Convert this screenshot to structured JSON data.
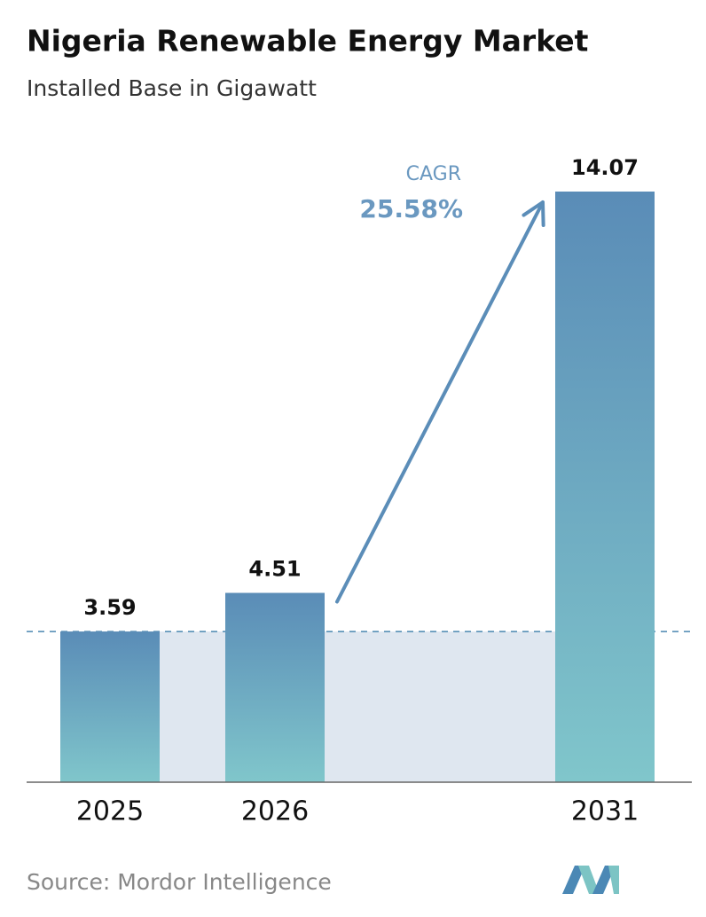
{
  "chart_data": {
    "type": "bar",
    "title": "Nigeria Renewable Energy Market",
    "subtitle": "Installed Base in Gigawatt",
    "categories": [
      "2025",
      "2026",
      "2031"
    ],
    "values": [
      3.59,
      4.51,
      14.07
    ],
    "annotation": {
      "label": "CAGR",
      "text": "25.58%"
    },
    "source": "Source:  Mordor Intelligence",
    "colors": {
      "top": "#5a8cb7",
      "bottom": "#80c6cb"
    }
  }
}
